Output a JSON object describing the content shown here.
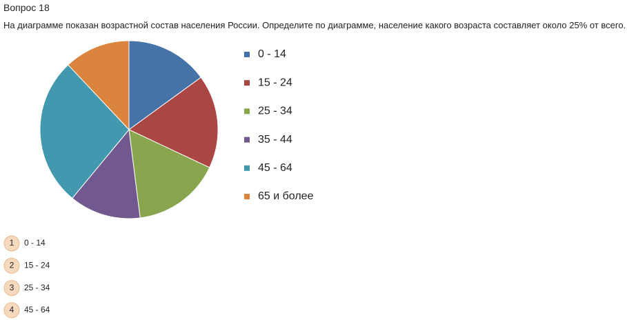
{
  "header": {
    "title": "Вопрос 18"
  },
  "question": "На диаграмме показан возрастной состав населения России. Определите по диаграмме, население какого возраста составляет около 25% от всего.",
  "chart_data": {
    "type": "pie",
    "categories": [
      "0 - 14",
      "15 - 24",
      "25 - 34",
      "35 - 44",
      "45 - 64",
      "65 и более"
    ],
    "values": [
      15,
      17,
      16,
      13,
      27,
      12
    ],
    "colors": [
      "#4572a7",
      "#aa4643",
      "#89a54e",
      "#71588f",
      "#4198af",
      "#db843d"
    ]
  },
  "options": [
    {
      "number": "1",
      "text": "0 - 14"
    },
    {
      "number": "2",
      "text": "15 - 24"
    },
    {
      "number": "3",
      "text": "25 - 34"
    },
    {
      "number": "4",
      "text": "45 - 64"
    }
  ]
}
